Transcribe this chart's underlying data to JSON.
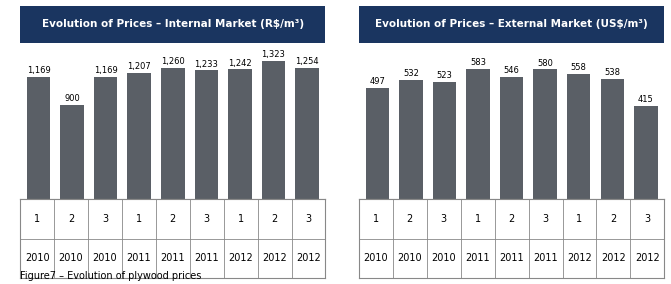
{
  "left_title": "Evolution of Prices – Internal Market (R$/m³)",
  "right_title": "Evolution of Prices – External Market (US$/m³)",
  "left_values": [
    1169,
    900,
    1169,
    1207,
    1260,
    1233,
    1242,
    1323,
    1254
  ],
  "right_values": [
    497,
    532,
    523,
    583,
    546,
    580,
    558,
    538,
    415
  ],
  "labels_top": [
    "1",
    "2",
    "3",
    "1",
    "2",
    "3",
    "1",
    "2",
    "3"
  ],
  "labels_bot": [
    "2010",
    "2010",
    "2010",
    "2011",
    "2011",
    "2011",
    "2012",
    "2012",
    "2012"
  ],
  "bar_color": "#5a5f66",
  "title_bg_color": "#1a3560",
  "title_text_color": "#ffffff",
  "caption": "Figure7 – Evolution of plywood prices",
  "left_value_labels": [
    "1,169",
    "900",
    "1,169",
    "1,207",
    "1,260",
    "1,233",
    "1,242",
    "1,323",
    "1,254"
  ],
  "right_value_labels": [
    "497",
    "532",
    "523",
    "583",
    "546",
    "580",
    "558",
    "538",
    "415"
  ],
  "left_ylim": [
    0,
    1500
  ],
  "right_ylim": [
    0,
    700
  ]
}
